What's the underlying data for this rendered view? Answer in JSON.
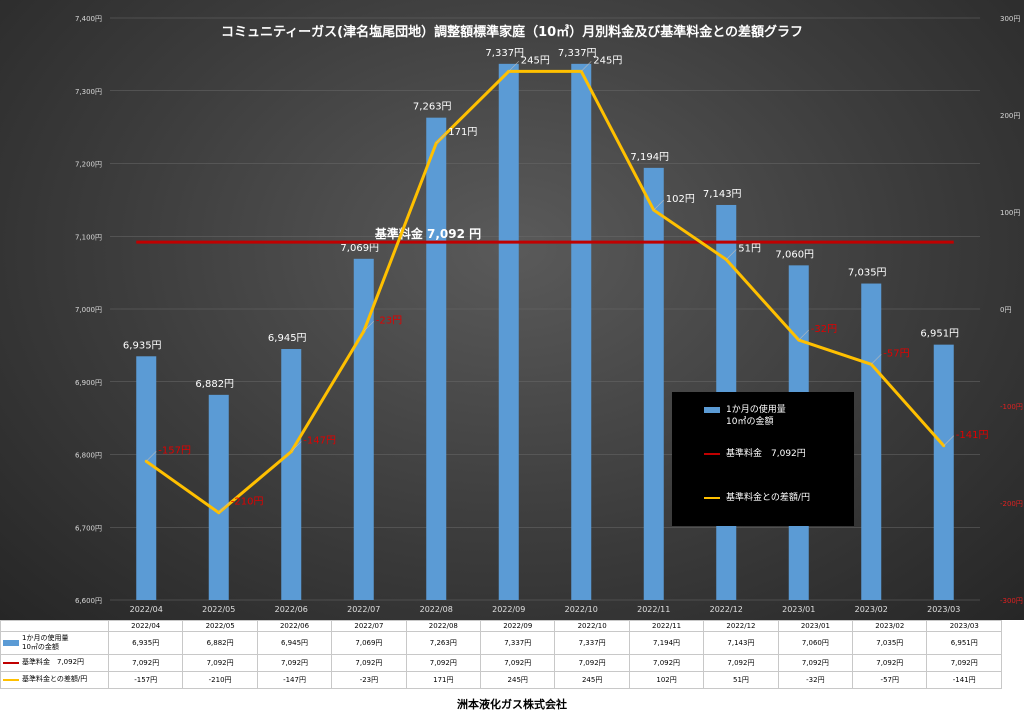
{
  "chart_data": {
    "type": "bar",
    "title": "コミュニティーガス(津名塩尾団地）調整額標準家庭（10㎥）月別料金及び基準料金との差額グラフ",
    "categories": [
      "2022/04",
      "2022/05",
      "2022/06",
      "2022/07",
      "2022/08",
      "2022/09",
      "2022/10",
      "2022/11",
      "2022/12",
      "2023/01",
      "2023/02",
      "2023/03"
    ],
    "series": [
      {
        "name": "1か月の使用量10㎥の金額",
        "type": "bar",
        "axis": "left",
        "values": [
          6935,
          6882,
          6945,
          7069,
          7263,
          7337,
          7337,
          7194,
          7143,
          7060,
          7035,
          6951
        ],
        "labels": [
          "6,935円",
          "6,882円",
          "6,945円",
          "7,069円",
          "7,263円",
          "7,337円",
          "7,337円",
          "7,194円",
          "7,143円",
          "7,060円",
          "7,035円",
          "6,951円"
        ]
      },
      {
        "name": "基準料金 7,092円",
        "type": "line",
        "axis": "left",
        "values": [
          7092,
          7092,
          7092,
          7092,
          7092,
          7092,
          7092,
          7092,
          7092,
          7092,
          7092,
          7092
        ]
      },
      {
        "name": "基準料金との差額/円",
        "type": "line",
        "axis": "right",
        "values": [
          -157,
          -210,
          -147,
          -23,
          171,
          245,
          245,
          102,
          51,
          -32,
          -57,
          -141
        ],
        "labels": [
          "-157円",
          "-210円",
          "-147円",
          "-23円",
          "171円",
          "245円",
          "245円",
          "102円",
          "51円",
          "-32円",
          "-57円",
          "-141円"
        ]
      }
    ],
    "ylim_left": [
      6600,
      7400
    ],
    "yticks_left": [
      "6,600円",
      "6,700円",
      "6,800円",
      "6,900円",
      "7,000円",
      "7,100円",
      "7,200円",
      "7,300円",
      "7,400円"
    ],
    "ylim_right": [
      -300,
      300
    ],
    "yticks_right": [
      "-300円",
      "-200円",
      "-100円",
      "0円",
      "100円",
      "200円",
      "300円"
    ],
    "reference_label": "基準料金 7,092 円",
    "legend_position": "bottom-right",
    "grid": true,
    "colors": {
      "bar": "#5b9bd5",
      "reference": "#c00000",
      "diff": "#ffc000",
      "negative_label": "#e00000",
      "positive_label": "#ffffff"
    }
  },
  "legend": [
    {
      "line1": "1か月の使用量",
      "line2": "10㎥の金額"
    },
    {
      "line1": "基準料金　7,092円"
    },
    {
      "line1": "基準料金との差額/円"
    }
  ],
  "table": {
    "row_labels": [
      "1か月の使用量10㎥の金額",
      "基準料金　7,092円",
      "基準料金との差額/円"
    ],
    "row_label_lines": [
      [
        "1か月の使用量",
        "10㎥の金額"
      ],
      [
        "基準料金　7,092円"
      ],
      [
        "基準料金との差額/円"
      ]
    ],
    "months": [
      "2022/04",
      "2022/05",
      "2022/06",
      "2022/07",
      "2022/08",
      "2022/09",
      "2022/10",
      "2022/11",
      "2022/12",
      "2023/01",
      "2023/02",
      "2023/03"
    ],
    "row1": [
      "6,935円",
      "6,882円",
      "6,945円",
      "7,069円",
      "7,263円",
      "7,337円",
      "7,337円",
      "7,194円",
      "7,143円",
      "7,060円",
      "7,035円",
      "6,951円"
    ],
    "row2": [
      "7,092円",
      "7,092円",
      "7,092円",
      "7,092円",
      "7,092円",
      "7,092円",
      "7,092円",
      "7,092円",
      "7,092円",
      "7,092円",
      "7,092円",
      "7,092円"
    ],
    "row3": [
      "-157円",
      "-210円",
      "-147円",
      "-23円",
      "171円",
      "245円",
      "245円",
      "102円",
      "51円",
      "-32円",
      "-57円",
      "-141円"
    ]
  },
  "company": "洲本液化ガス株式会社"
}
